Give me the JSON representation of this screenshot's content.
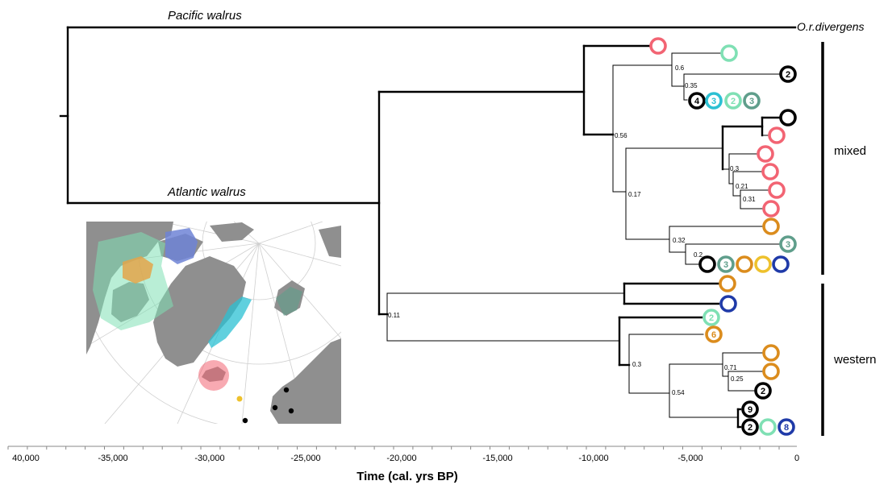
{
  "labels": {
    "pacific": "Pacific walrus",
    "atlantic": "Atlantic walrus",
    "outgroup": "O.r.divergens",
    "mixed": "mixed",
    "western": "western",
    "axis_title": "Time (cal. yrs BP)"
  },
  "axis_ticks": [
    "40,000",
    "-35,000",
    "-30,000",
    "-25,000",
    "-20,000",
    "-15,000",
    "-10,000",
    "-5,000",
    "0"
  ],
  "support_values": [
    "0.6",
    "0.35",
    "0.56",
    "0.3",
    "0.21",
    "0.31",
    "0.17",
    "0.32",
    "0.2",
    "0.11",
    "0.3",
    "0.71",
    "0.25",
    "0.54"
  ],
  "colors": {
    "pink": "#f26473",
    "mint": "#7fe0b4",
    "black": "#000000",
    "cyan": "#2bc0d3",
    "teal": "#5f9e8b",
    "orange": "#db8c1d",
    "yellow": "#eec12c",
    "navy": "#1f3aa8",
    "map_land": "#8f8f8f",
    "map_sea": "#ffffff"
  },
  "tips": [
    {
      "color": "pink",
      "count": ""
    },
    {
      "color": "mint",
      "count": ""
    },
    {
      "color": "black",
      "count": "2"
    },
    {
      "color": "black",
      "count": "4"
    },
    {
      "color": "cyan",
      "count": "3"
    },
    {
      "color": "mint",
      "count": "2"
    },
    {
      "color": "teal",
      "count": "3"
    },
    {
      "color": "black",
      "count": ""
    },
    {
      "color": "pink",
      "count": ""
    },
    {
      "color": "pink",
      "count": ""
    },
    {
      "color": "pink",
      "count": ""
    },
    {
      "color": "pink",
      "count": ""
    },
    {
      "color": "pink",
      "count": ""
    },
    {
      "color": "orange",
      "count": ""
    },
    {
      "color": "teal",
      "count": "3"
    },
    {
      "color": "black",
      "count": ""
    },
    {
      "color": "teal",
      "count": "3"
    },
    {
      "color": "orange",
      "count": ""
    },
    {
      "color": "yellow",
      "count": ""
    },
    {
      "color": "navy",
      "count": ""
    },
    {
      "color": "orange",
      "count": ""
    },
    {
      "color": "navy",
      "count": ""
    },
    {
      "color": "mint",
      "count": "2"
    },
    {
      "color": "orange",
      "count": "6"
    },
    {
      "color": "orange",
      "count": ""
    },
    {
      "color": "orange",
      "count": ""
    },
    {
      "color": "black",
      "count": "2"
    },
    {
      "color": "black",
      "count": "9"
    },
    {
      "color": "black",
      "count": "2"
    },
    {
      "color": "mint",
      "count": ""
    },
    {
      "color": "navy",
      "count": "8"
    }
  ]
}
